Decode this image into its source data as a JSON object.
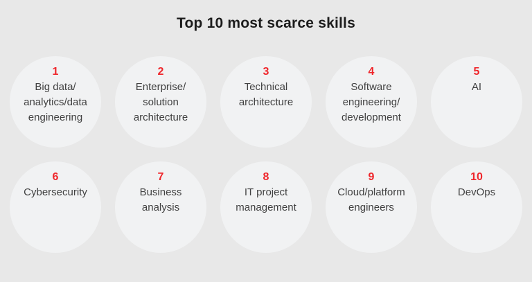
{
  "title": "Top 10 most scarce skills",
  "colors": {
    "background": "#e8e8e8",
    "circle_fill": "#f1f2f3",
    "rank_red": "#ef262b",
    "title_text": "#1c1c1c",
    "skill_text": "#414141"
  },
  "chart_data": {
    "type": "table",
    "title": "Top 10 most scarce skills",
    "categories": [
      "1",
      "2",
      "3",
      "4",
      "5",
      "6",
      "7",
      "8",
      "9",
      "10"
    ],
    "values": [
      "Big data/analytics/data engineering",
      "Enterprise/solution architecture",
      "Technical architecture",
      "Software engineering/development",
      "AI",
      "Cybersecurity",
      "Business analysis",
      "IT project management",
      "Cloud/platform engineers",
      "DevOps"
    ]
  },
  "skills": [
    {
      "rank": "1",
      "label": "Big data/\nanalytics/data\nengineering"
    },
    {
      "rank": "2",
      "label": "Enterprise/\nsolution\narchitecture"
    },
    {
      "rank": "3",
      "label": "Technical\narchitecture"
    },
    {
      "rank": "4",
      "label": "Software\nengineering/\ndevelopment"
    },
    {
      "rank": "5",
      "label": "AI"
    },
    {
      "rank": "6",
      "label": "Cybersecurity"
    },
    {
      "rank": "7",
      "label": "Business\nanalysis"
    },
    {
      "rank": "8",
      "label": "IT project\nmanagement"
    },
    {
      "rank": "9",
      "label": "Cloud/platform\nengineers"
    },
    {
      "rank": "10",
      "label": "DevOps"
    }
  ]
}
